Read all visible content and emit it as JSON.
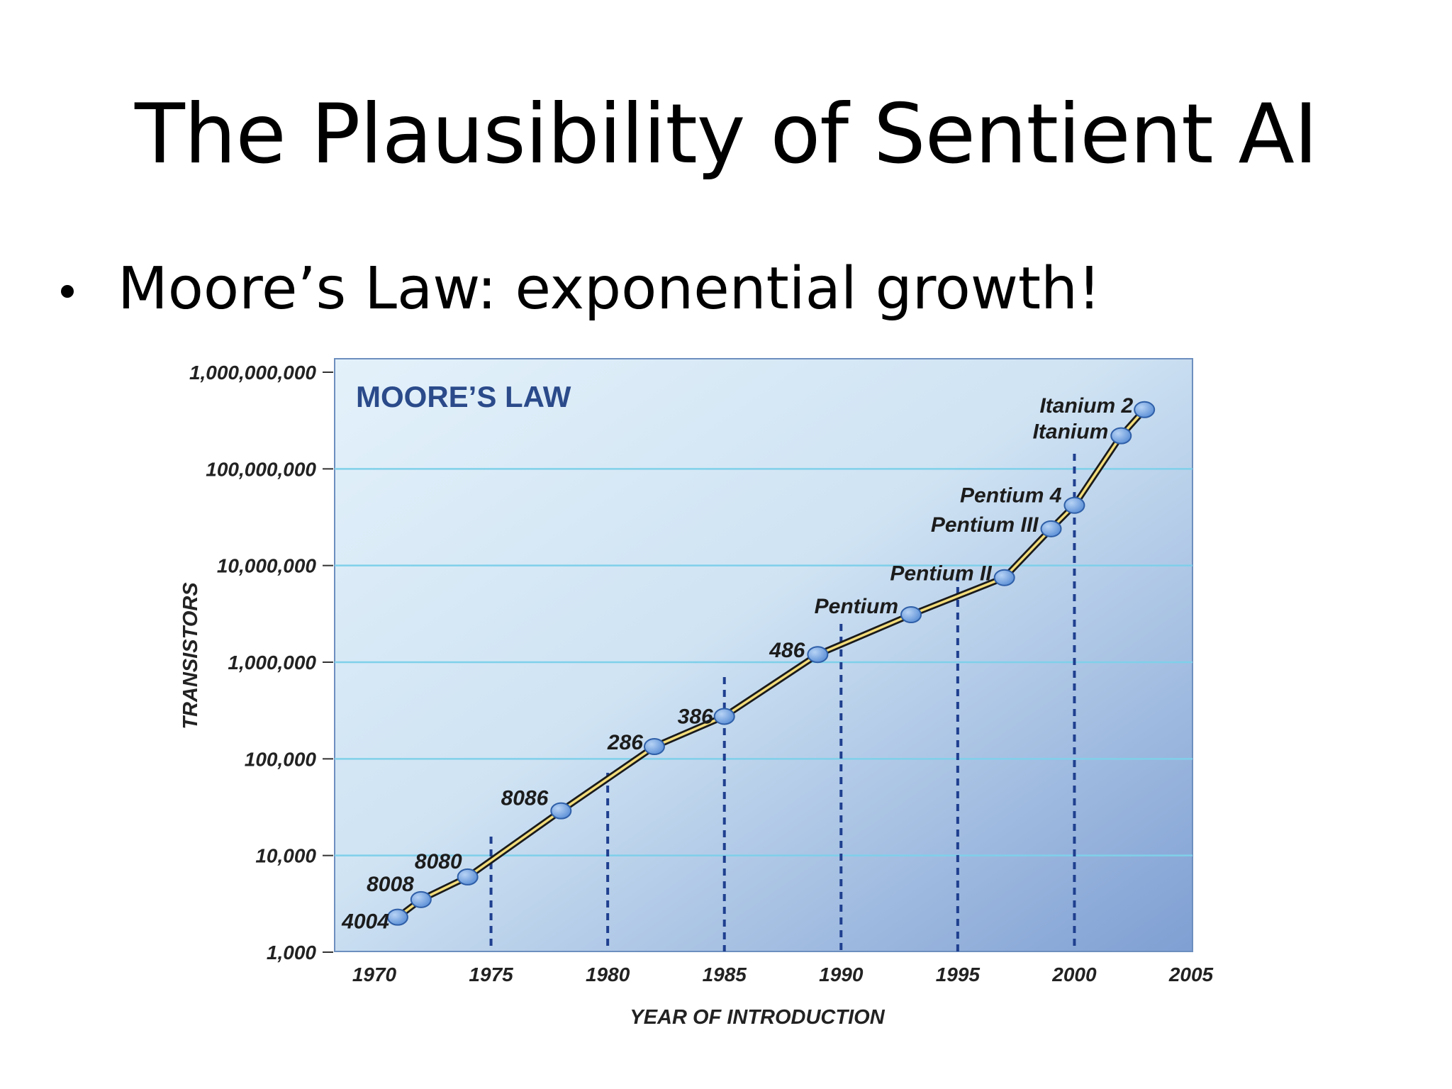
{
  "slide": {
    "title": "The Plausibility of Sentient AI",
    "bullet": "Moore’s Law: exponential growth!"
  },
  "colors": {
    "plot_top": "#e3f1fa",
    "plot_bottom": "#7f9fd3",
    "gridline": "#7fd0ea",
    "trend_line": "#1a1a1a",
    "trend_core": "#f3dc7a",
    "marker": "#5b8fd6",
    "heading": "#2a4a8a"
  },
  "chart_data": {
    "type": "line",
    "title": "MOORE’S LAW",
    "xlabel": "YEAR OF INTRODUCTION",
    "ylabel": "TRANSISTORS",
    "xlim": [
      1968,
      2005
    ],
    "ylim": [
      1000,
      1000000000
    ],
    "y_scale": "log",
    "x_ticks": [
      "1970",
      "1975",
      "1980",
      "1985",
      "1990",
      "1995",
      "2000",
      "2005"
    ],
    "y_ticks": [
      "1,000",
      "10,000",
      "100,000",
      "1,000,000",
      "10,000,000",
      "100,000,000",
      "1,000,000,000"
    ],
    "gridlines": "horizontal",
    "dashed_year_markers": [
      1975,
      1980,
      1985,
      1990,
      1995,
      2000
    ],
    "points": [
      {
        "label": "4004",
        "x": 1971,
        "y": 2300
      },
      {
        "label": "8008",
        "x": 1972,
        "y": 3500
      },
      {
        "label": "8080",
        "x": 1974,
        "y": 6000
      },
      {
        "label": "8086",
        "x": 1978,
        "y": 29000
      },
      {
        "label": "286",
        "x": 1982,
        "y": 134000
      },
      {
        "label": "386",
        "x": 1985,
        "y": 275000
      },
      {
        "label": "486",
        "x": 1989,
        "y": 1200000
      },
      {
        "label": "Pentium",
        "x": 1993,
        "y": 3100000
      },
      {
        "label": "Pentium II",
        "x": 1997,
        "y": 7500000
      },
      {
        "label": "Pentium III",
        "x": 1999,
        "y": 24000000
      },
      {
        "label": "Pentium 4",
        "x": 2000,
        "y": 42000000
      },
      {
        "label": "Itanium",
        "x": 2002,
        "y": 220000000
      },
      {
        "label": "Itanium 2",
        "x": 2003,
        "y": 410000000
      }
    ]
  }
}
